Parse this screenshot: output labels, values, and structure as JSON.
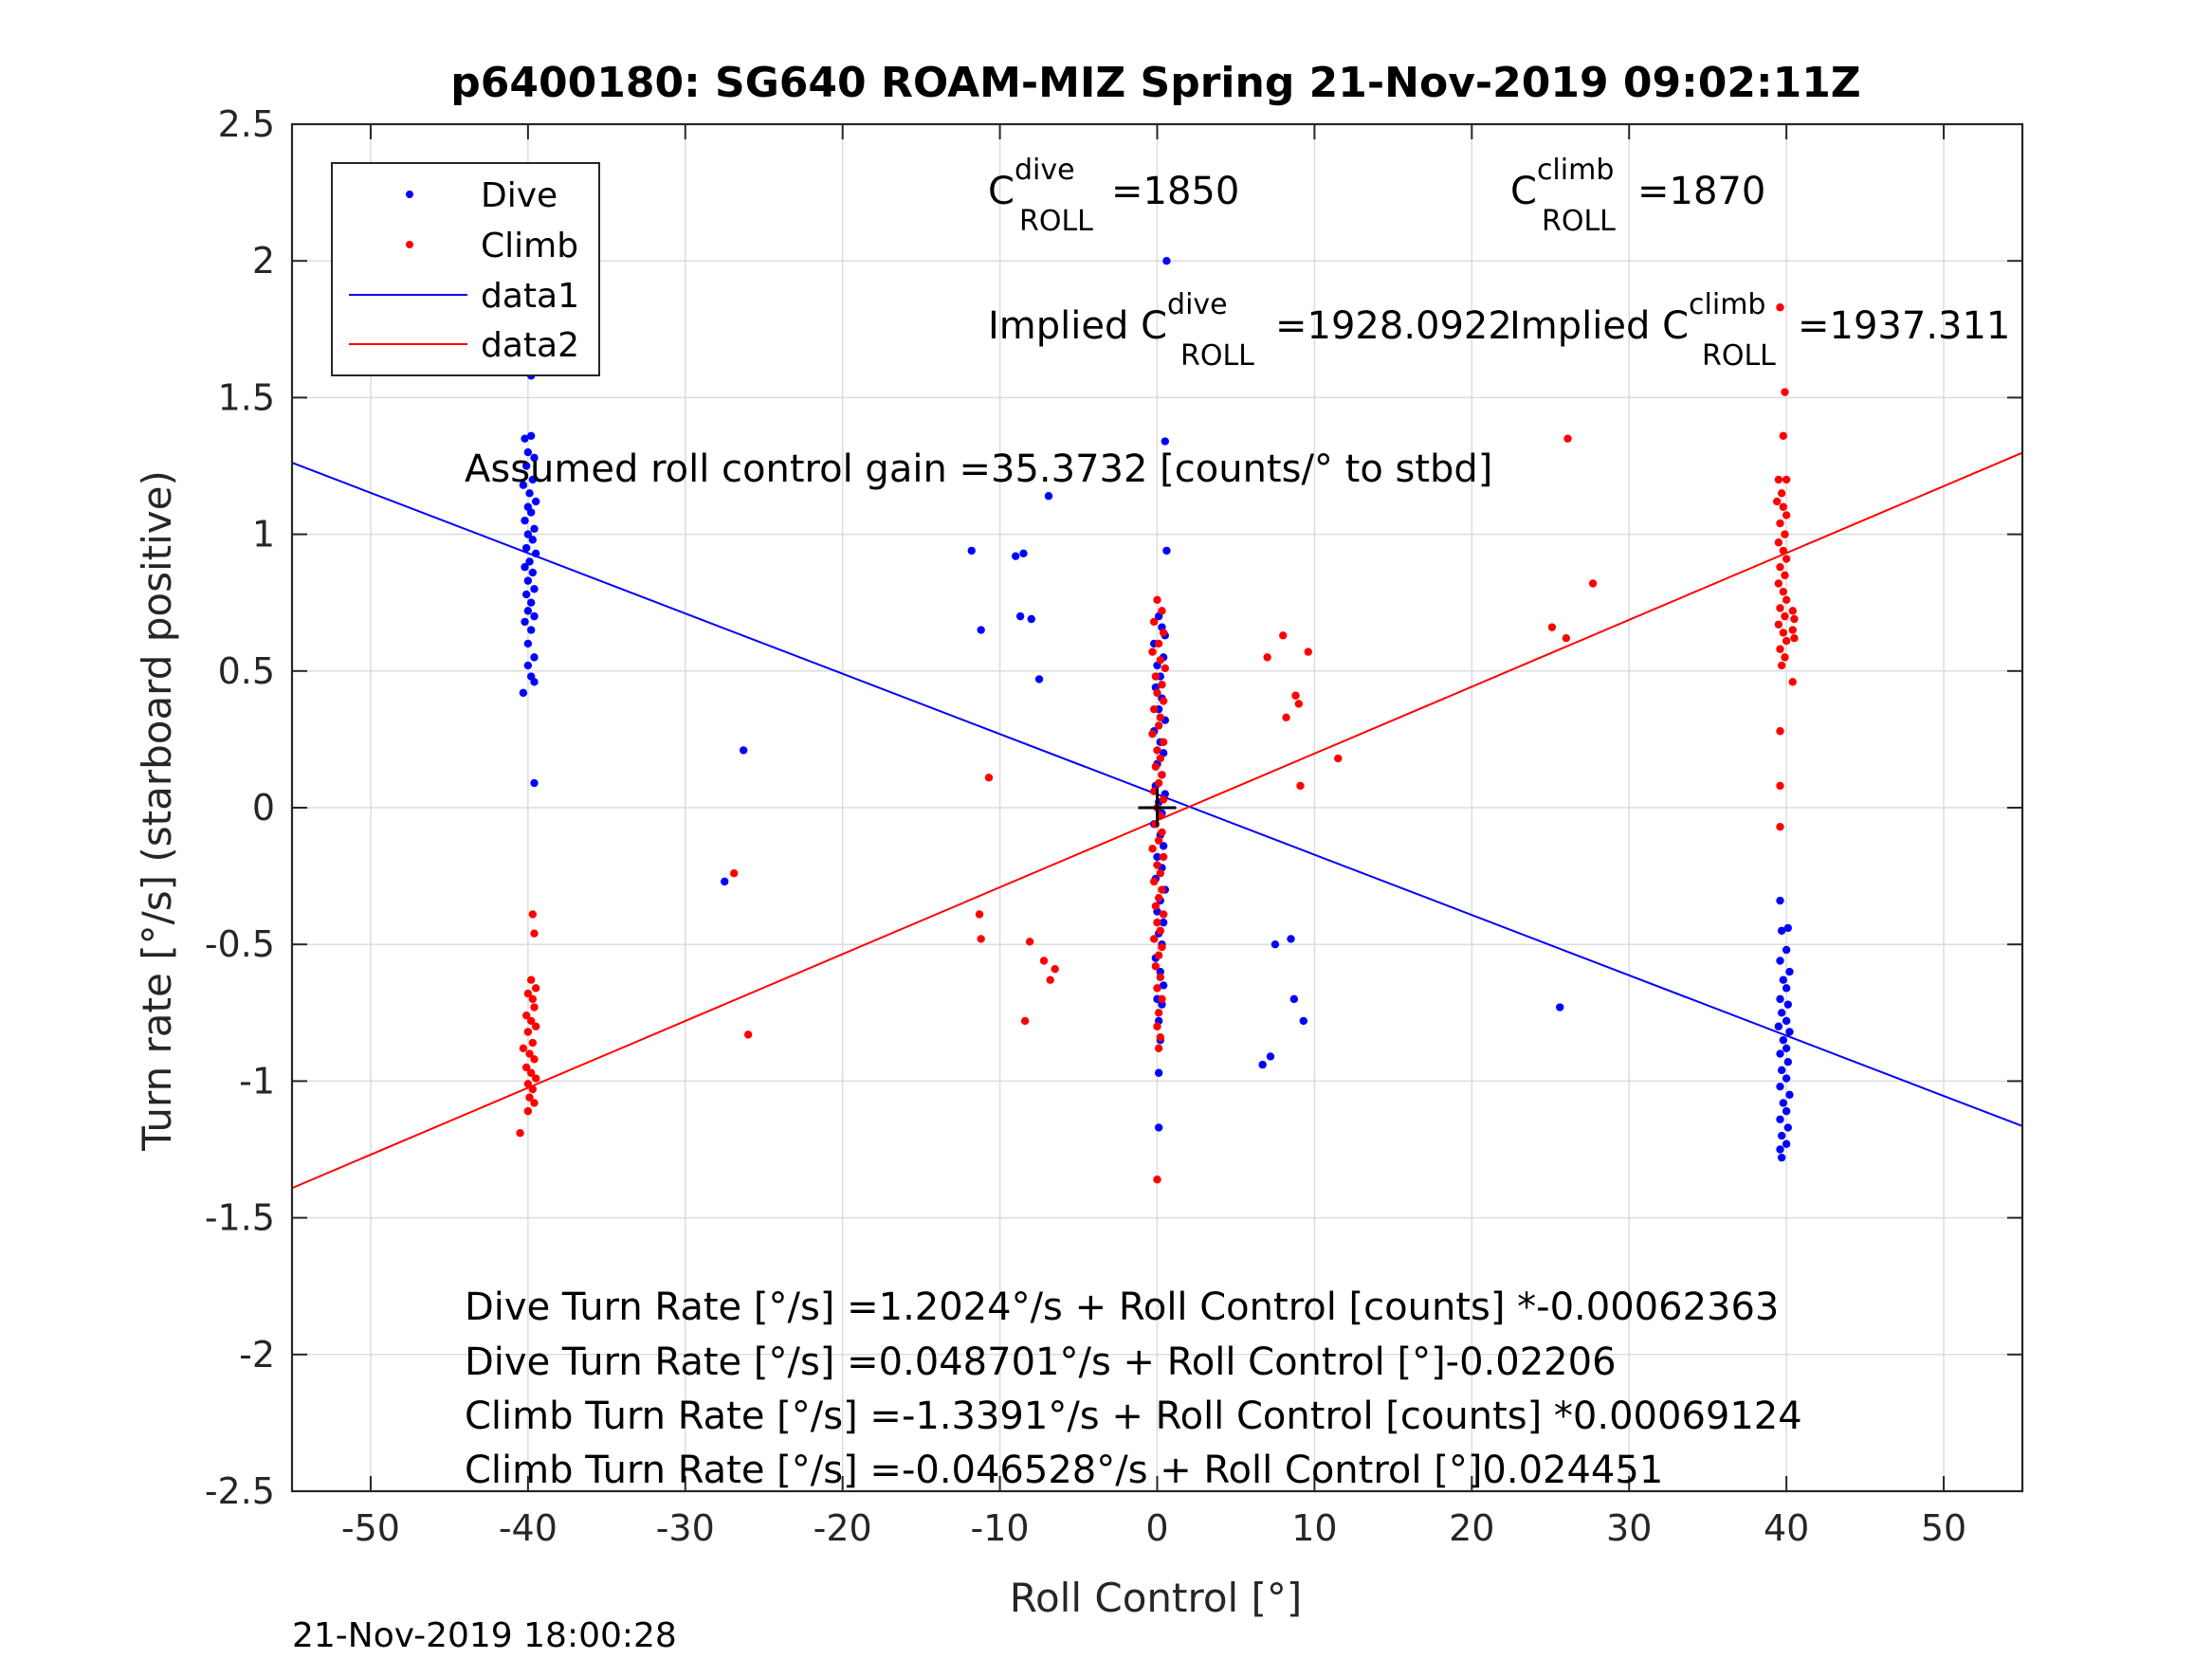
{
  "chart_data": {
    "type": "scatter",
    "title": "p6400180: SG640 ROAM-MIZ Spring 21-Nov-2019 09:02:11Z",
    "xlabel": "Roll Control [°]",
    "ylabel": "Turn rate [°/s] (starboard positive)",
    "xlim": [
      -55,
      55
    ],
    "ylim": [
      -2.5,
      2.5
    ],
    "xticks": [
      -50,
      -40,
      -30,
      -20,
      -10,
      0,
      10,
      20,
      30,
      40,
      50
    ],
    "xtick_labels": [
      "-50",
      "-40",
      "-30",
      "-20",
      "-10",
      "0",
      "10",
      "20",
      "30",
      "40",
      "50"
    ],
    "yticks": [
      -2.5,
      -2,
      -1.5,
      -1,
      -0.5,
      0,
      0.5,
      1,
      1.5,
      2,
      2.5
    ],
    "ytick_labels": [
      "-2.5",
      "-2",
      "-1.5",
      "-1",
      "-0.5",
      "0",
      "0.5",
      "1",
      "1.5",
      "2",
      "2.5"
    ],
    "grid": true,
    "legend_position": "top-left",
    "legend": [
      {
        "label": "Dive",
        "marker": "dot",
        "color": "#0000ff"
      },
      {
        "label": "Climb",
        "marker": "dot",
        "color": "#ff0000"
      },
      {
        "label": "data1",
        "marker": "line",
        "color": "#0000ff"
      },
      {
        "label": "data2",
        "marker": "line",
        "color": "#ff0000"
      }
    ],
    "annotations": {
      "c_dive": {
        "base": "C",
        "sup": "dive",
        "sub": "ROLL",
        "value": "=1850"
      },
      "c_climb": {
        "base": "C",
        "sup": "climb",
        "sub": "ROLL",
        "value": "=1870"
      },
      "implied_dive": {
        "prefix": "Implied C",
        "sup": "dive",
        "sub": "ROLL",
        "value": "=1928.0922"
      },
      "implied_climb": {
        "prefix": "Implied C",
        "sup": "climb",
        "sub": "ROLL",
        "value": "=1937.311"
      },
      "gain": "Assumed roll control gain =35.3732 [counts/° to stbd]",
      "eq1": "Dive Turn Rate [°/s] =1.2024°/s + Roll Control [counts] *-0.00062363",
      "eq2": "Dive Turn Rate [°/s] =0.048701°/s + Roll Control [°]-0.02206",
      "eq3": "Climb Turn Rate [°/s] =-1.3391°/s + Roll Control [counts] *0.00069124",
      "eq4": "Climb Turn Rate [°/s] =-0.046528°/s + Roll Control [°]0.024451"
    },
    "timestamp": "21-Nov-2019 18:00:28",
    "fit_lines": [
      {
        "name": "data1",
        "color": "#0000ff",
        "intercept": 0.048701,
        "slope": -0.02206
      },
      {
        "name": "data2",
        "color": "#ff0000",
        "intercept": -0.046528,
        "slope": 0.024451
      }
    ],
    "center_marker": {
      "x": 0,
      "y": 0
    },
    "series": [
      {
        "name": "Dive",
        "color": "#0000ff",
        "points": [
          [
            -40.2,
            1.35
          ],
          [
            -39.8,
            1.36
          ],
          [
            -40.0,
            1.3
          ],
          [
            -39.6,
            1.28
          ],
          [
            -40.1,
            1.25
          ],
          [
            -39.7,
            1.2
          ],
          [
            -40.3,
            1.18
          ],
          [
            -39.9,
            1.15
          ],
          [
            -39.5,
            1.12
          ],
          [
            -40.0,
            1.1
          ],
          [
            -39.8,
            1.08
          ],
          [
            -40.2,
            1.05
          ],
          [
            -39.6,
            1.02
          ],
          [
            -40.0,
            1.0
          ],
          [
            -39.7,
            0.98
          ],
          [
            -40.1,
            0.95
          ],
          [
            -39.5,
            0.93
          ],
          [
            -39.9,
            0.9
          ],
          [
            -40.2,
            0.88
          ],
          [
            -39.7,
            0.86
          ],
          [
            -40.0,
            0.83
          ],
          [
            -39.6,
            0.8
          ],
          [
            -40.1,
            0.78
          ],
          [
            -39.8,
            0.75
          ],
          [
            -40.0,
            0.72
          ],
          [
            -39.6,
            0.7
          ],
          [
            -40.2,
            0.68
          ],
          [
            -39.8,
            0.65
          ],
          [
            -40.0,
            0.6
          ],
          [
            -39.6,
            0.55
          ],
          [
            -40.0,
            0.52
          ],
          [
            -39.8,
            0.48
          ],
          [
            -39.6,
            0.46
          ],
          [
            -40.3,
            0.42
          ],
          [
            -39.7,
            1.65
          ],
          [
            -39.8,
            1.58
          ],
          [
            -39.6,
            0.09
          ],
          [
            -26.3,
            0.21
          ],
          [
            -27.5,
            -0.27
          ],
          [
            -11.8,
            0.94
          ],
          [
            -11.2,
            0.65
          ],
          [
            -9.0,
            0.92
          ],
          [
            -8.5,
            0.93
          ],
          [
            -8.7,
            0.7
          ],
          [
            -8.0,
            0.69
          ],
          [
            -7.5,
            0.47
          ],
          [
            -6.9,
            1.14
          ],
          [
            0.6,
            2.0
          ],
          [
            0.5,
            1.34
          ],
          [
            0.6,
            0.94
          ],
          [
            0.1,
            0.7
          ],
          [
            0.3,
            0.66
          ],
          [
            0.5,
            0.63
          ],
          [
            -0.2,
            0.6
          ],
          [
            0.4,
            0.55
          ],
          [
            0.0,
            0.52
          ],
          [
            0.2,
            0.48
          ],
          [
            -0.1,
            0.44
          ],
          [
            0.3,
            0.4
          ],
          [
            0.1,
            0.36
          ],
          [
            0.5,
            0.32
          ],
          [
            -0.2,
            0.28
          ],
          [
            0.2,
            0.24
          ],
          [
            0.4,
            0.2
          ],
          [
            0.0,
            0.16
          ],
          [
            0.3,
            0.12
          ],
          [
            -0.1,
            0.08
          ],
          [
            0.5,
            0.05
          ],
          [
            0.1,
            0.02
          ],
          [
            0.3,
            -0.02
          ],
          [
            -0.2,
            -0.06
          ],
          [
            0.2,
            -0.1
          ],
          [
            0.4,
            -0.14
          ],
          [
            0.0,
            -0.18
          ],
          [
            0.3,
            -0.22
          ],
          [
            -0.1,
            -0.26
          ],
          [
            0.5,
            -0.3
          ],
          [
            0.2,
            -0.34
          ],
          [
            0.0,
            -0.38
          ],
          [
            0.4,
            -0.42
          ],
          [
            0.1,
            -0.46
          ],
          [
            0.3,
            -0.5
          ],
          [
            -0.1,
            -0.55
          ],
          [
            0.2,
            -0.6
          ],
          [
            0.4,
            -0.65
          ],
          [
            0.0,
            -0.7
          ],
          [
            0.3,
            -0.72
          ],
          [
            0.1,
            -0.78
          ],
          [
            0.2,
            -0.85
          ],
          [
            0.1,
            -0.97
          ],
          [
            0.1,
            -1.17
          ],
          [
            7.5,
            -0.5
          ],
          [
            8.5,
            -0.48
          ],
          [
            8.7,
            -0.7
          ],
          [
            9.3,
            -0.78
          ],
          [
            7.2,
            -0.91
          ],
          [
            6.7,
            -0.94
          ],
          [
            25.6,
            -0.73
          ],
          [
            39.6,
            -0.34
          ],
          [
            40.1,
            -0.44
          ],
          [
            39.7,
            -0.45
          ],
          [
            40.0,
            -0.52
          ],
          [
            39.6,
            -0.56
          ],
          [
            40.2,
            -0.6
          ],
          [
            39.8,
            -0.63
          ],
          [
            40.0,
            -0.66
          ],
          [
            39.6,
            -0.7
          ],
          [
            40.1,
            -0.72
          ],
          [
            39.7,
            -0.75
          ],
          [
            40.0,
            -0.78
          ],
          [
            39.5,
            -0.8
          ],
          [
            40.2,
            -0.82
          ],
          [
            39.8,
            -0.85
          ],
          [
            40.0,
            -0.88
          ],
          [
            39.6,
            -0.9
          ],
          [
            40.1,
            -0.93
          ],
          [
            39.7,
            -0.96
          ],
          [
            40.0,
            -0.99
          ],
          [
            39.6,
            -1.02
          ],
          [
            40.2,
            -1.05
          ],
          [
            39.8,
            -1.08
          ],
          [
            40.0,
            -1.11
          ],
          [
            39.6,
            -1.14
          ],
          [
            40.1,
            -1.17
          ],
          [
            39.7,
            -1.2
          ],
          [
            40.0,
            -1.23
          ],
          [
            39.6,
            -1.25
          ],
          [
            39.7,
            -1.28
          ]
        ]
      },
      {
        "name": "Climb",
        "color": "#ff0000",
        "points": [
          [
            -39.7,
            -0.39
          ],
          [
            -39.6,
            -0.46
          ],
          [
            -39.8,
            -0.63
          ],
          [
            -39.5,
            -0.66
          ],
          [
            -40.0,
            -0.68
          ],
          [
            -39.7,
            -0.7
          ],
          [
            -39.6,
            -0.73
          ],
          [
            -40.1,
            -0.76
          ],
          [
            -39.8,
            -0.78
          ],
          [
            -39.5,
            -0.8
          ],
          [
            -40.0,
            -0.82
          ],
          [
            -39.7,
            -0.86
          ],
          [
            -40.3,
            -0.88
          ],
          [
            -39.9,
            -0.9
          ],
          [
            -39.6,
            -0.92
          ],
          [
            -40.1,
            -0.95
          ],
          [
            -39.8,
            -0.97
          ],
          [
            -39.5,
            -0.99
          ],
          [
            -40.0,
            -1.01
          ],
          [
            -39.7,
            -1.03
          ],
          [
            -39.9,
            -1.06
          ],
          [
            -39.6,
            -1.08
          ],
          [
            -40.0,
            -1.11
          ],
          [
            -40.5,
            -1.19
          ],
          [
            -26.9,
            -0.24
          ],
          [
            -26.0,
            -0.83
          ],
          [
            -11.3,
            -0.39
          ],
          [
            -11.2,
            -0.48
          ],
          [
            -10.7,
            0.11
          ],
          [
            -8.1,
            -0.49
          ],
          [
            -8.4,
            -0.78
          ],
          [
            -7.2,
            -0.56
          ],
          [
            -6.8,
            -0.63
          ],
          [
            -6.5,
            -0.59
          ],
          [
            0.0,
            0.76
          ],
          [
            0.3,
            0.72
          ],
          [
            -0.2,
            0.68
          ],
          [
            0.4,
            0.64
          ],
          [
            0.1,
            0.6
          ],
          [
            -0.3,
            0.57
          ],
          [
            0.2,
            0.54
          ],
          [
            0.5,
            0.51
          ],
          [
            -0.1,
            0.48
          ],
          [
            0.3,
            0.45
          ],
          [
            0.0,
            0.42
          ],
          [
            0.4,
            0.39
          ],
          [
            -0.2,
            0.36
          ],
          [
            0.2,
            0.33
          ],
          [
            0.1,
            0.3
          ],
          [
            -0.3,
            0.27
          ],
          [
            0.4,
            0.24
          ],
          [
            0.0,
            0.21
          ],
          [
            0.2,
            0.18
          ],
          [
            -0.1,
            0.15
          ],
          [
            0.3,
            0.12
          ],
          [
            0.1,
            0.09
          ],
          [
            -0.2,
            0.06
          ],
          [
            0.4,
            0.03
          ],
          [
            0.0,
            0.0
          ],
          [
            0.2,
            -0.03
          ],
          [
            -0.1,
            -0.06
          ],
          [
            0.3,
            -0.09
          ],
          [
            0.1,
            -0.12
          ],
          [
            -0.3,
            -0.15
          ],
          [
            0.4,
            -0.18
          ],
          [
            0.0,
            -0.21
          ],
          [
            0.2,
            -0.24
          ],
          [
            -0.2,
            -0.27
          ],
          [
            0.3,
            -0.3
          ],
          [
            0.1,
            -0.33
          ],
          [
            -0.1,
            -0.36
          ],
          [
            0.4,
            -0.39
          ],
          [
            0.0,
            -0.42
          ],
          [
            0.2,
            -0.45
          ],
          [
            -0.2,
            -0.48
          ],
          [
            0.3,
            -0.51
          ],
          [
            0.1,
            -0.54
          ],
          [
            -0.1,
            -0.58
          ],
          [
            0.2,
            -0.62
          ],
          [
            0.0,
            -0.66
          ],
          [
            0.3,
            -0.7
          ],
          [
            0.1,
            -0.75
          ],
          [
            0.0,
            -0.8
          ],
          [
            0.2,
            -0.84
          ],
          [
            0.1,
            -0.88
          ],
          [
            0.0,
            -1.36
          ],
          [
            7.0,
            0.55
          ],
          [
            8.0,
            0.63
          ],
          [
            8.2,
            0.33
          ],
          [
            8.8,
            0.41
          ],
          [
            9.0,
            0.38
          ],
          [
            9.6,
            0.57
          ],
          [
            9.1,
            0.08
          ],
          [
            11.5,
            0.18
          ],
          [
            25.1,
            0.66
          ],
          [
            26.0,
            0.62
          ],
          [
            26.1,
            1.35
          ],
          [
            27.7,
            0.82
          ],
          [
            39.6,
            1.83
          ],
          [
            39.9,
            1.52
          ],
          [
            39.8,
            1.36
          ],
          [
            39.5,
            1.2
          ],
          [
            40.0,
            1.2
          ],
          [
            39.7,
            1.15
          ],
          [
            39.4,
            1.12
          ],
          [
            39.8,
            1.1
          ],
          [
            40.0,
            1.07
          ],
          [
            39.6,
            1.04
          ],
          [
            39.9,
            1.0
          ],
          [
            39.5,
            0.97
          ],
          [
            39.8,
            0.94
          ],
          [
            40.0,
            0.91
          ],
          [
            39.6,
            0.88
          ],
          [
            39.9,
            0.85
          ],
          [
            39.5,
            0.82
          ],
          [
            39.8,
            0.79
          ],
          [
            40.0,
            0.76
          ],
          [
            39.6,
            0.73
          ],
          [
            39.9,
            0.7
          ],
          [
            39.5,
            0.67
          ],
          [
            39.8,
            0.64
          ],
          [
            40.0,
            0.61
          ],
          [
            39.6,
            0.58
          ],
          [
            39.9,
            0.55
          ],
          [
            39.7,
            0.52
          ],
          [
            40.4,
            0.72
          ],
          [
            40.5,
            0.69
          ],
          [
            40.4,
            0.65
          ],
          [
            40.5,
            0.62
          ],
          [
            40.4,
            0.46
          ],
          [
            39.6,
            0.28
          ],
          [
            39.6,
            0.08
          ],
          [
            39.6,
            -0.07
          ]
        ]
      }
    ]
  }
}
